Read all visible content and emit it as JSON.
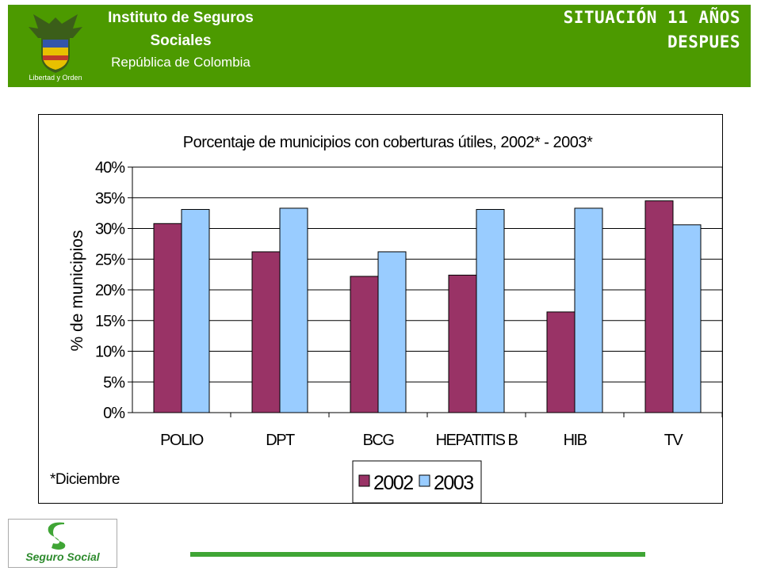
{
  "header": {
    "institution_line1": "Instituto de Seguros",
    "institution_line2": "Sociales",
    "institution_sub": "República de Colombia",
    "coat_caption": "Libertad y Orden",
    "slide_title_line1": "SITUACIÓN 11 AÑOS",
    "slide_title_line2": "DESPUES"
  },
  "footer": {
    "logo_text": "Seguro Social"
  },
  "colors": {
    "header_green": "#4c9a00",
    "series_2002": "#993366",
    "series_2003": "#99ccff",
    "footer_line": "#3fa535"
  },
  "chart_data": {
    "type": "bar",
    "title": "Porcentaje de municipios con coberturas útiles, 2002* - 2003*",
    "ylabel": "% de municipios",
    "xlabel": "",
    "categories": [
      "POLIO",
      "DPT",
      "BCG",
      "HEPATITIS B",
      "HIB",
      "TV"
    ],
    "series": [
      {
        "name": "2002",
        "values": [
          30.8,
          26.2,
          22.2,
          22.4,
          16.4,
          34.5
        ]
      },
      {
        "name": "2003",
        "values": [
          33.1,
          33.3,
          26.2,
          33.1,
          33.3,
          30.6
        ]
      }
    ],
    "ylim": [
      0,
      40
    ],
    "yticks": [
      "0%",
      "5%",
      "10%",
      "15%",
      "20%",
      "25%",
      "30%",
      "35%",
      "40%"
    ],
    "grid": true,
    "legend_position": "bottom-center",
    "footnote": "*Diciembre"
  }
}
